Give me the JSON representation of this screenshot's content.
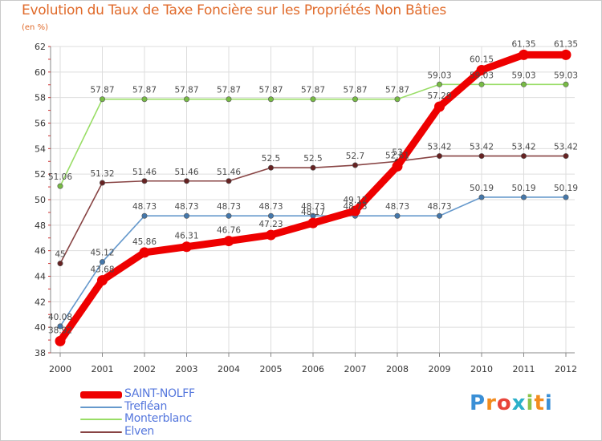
{
  "title": "Evolution du Taux de Taxe Foncière sur les Propriétés Non Bâties",
  "unit_label": "(en %)",
  "logo": {
    "text": "Proxiti",
    "letters": [
      "P",
      "r",
      "o",
      "x",
      "i",
      "t",
      "i"
    ],
    "colors": [
      "#3a8fd6",
      "#f28c1e",
      "#e8443a",
      "#2bb0c9",
      "#8bc34a",
      "#f28c1e",
      "#3a8fd6"
    ]
  },
  "chart_data": {
    "type": "line",
    "title": "Evolution du Taux de Taxe Foncière sur les Propriétés Non Bâties",
    "ylabel": "(en %)",
    "xlabel": "",
    "ylim": [
      38,
      62
    ],
    "yticks": [
      38,
      40,
      42,
      44,
      46,
      48,
      50,
      52,
      54,
      56,
      58,
      60,
      62
    ],
    "x": [
      "2000",
      "2001",
      "2002",
      "2003",
      "2004",
      "2005",
      "2006",
      "2007",
      "2008",
      "2009",
      "2010",
      "2011",
      "2012"
    ],
    "grid": true,
    "legend": "bottom-left",
    "series": [
      {
        "name": "Monterblanc",
        "color": "#99dd66",
        "marker": "#77bb44",
        "values": [
          51.06,
          57.87,
          57.87,
          57.87,
          57.87,
          57.87,
          57.87,
          57.87,
          57.87,
          59.03,
          59.03,
          59.03,
          59.03
        ],
        "labels": [
          "51.06",
          "57.87",
          "57.87",
          "57.87",
          "57.87",
          "57.87",
          "57.87",
          "57.87",
          "57.87",
          "59.03",
          "59.03",
          "59.03",
          "59.03"
        ]
      },
      {
        "name": "Elven",
        "color": "#884444",
        "marker": "#662222",
        "values": [
          45,
          51.32,
          51.46,
          51.46,
          51.46,
          52.5,
          52.5,
          52.7,
          53,
          53.42,
          53.42,
          53.42,
          53.42
        ],
        "labels": [
          "45",
          "51.32",
          "51.46",
          "51.46",
          "51.46",
          "52.5",
          "52.5",
          "52.7",
          "53",
          "53.42",
          "53.42",
          "53.42",
          "53.42"
        ]
      },
      {
        "name": "Trefléan",
        "color": "#6699cc",
        "marker": "#4477aa",
        "values": [
          40.08,
          45.12,
          48.73,
          48.73,
          48.73,
          48.73,
          48.73,
          48.73,
          48.73,
          48.73,
          50.19,
          50.19,
          50.19
        ],
        "labels": [
          "40.08",
          "45.12",
          "48.73",
          "48.73",
          "48.73",
          "48.73",
          "48.73",
          "48.73",
          "48.73",
          "48.73",
          "50.19",
          "50.19",
          "50.19"
        ]
      },
      {
        "name": "SAINT-NOLFF",
        "color": "#ee0000",
        "marker": "#ee0000",
        "values": [
          38.92,
          43.68,
          45.86,
          46.31,
          46.76,
          47.23,
          48.17,
          49.12,
          52.61,
          57.29,
          60.15,
          61.35,
          61.35
        ],
        "labels": [
          "38.92",
          "43.68",
          "45.86",
          "46.31",
          "46.76",
          "47.23",
          "48.17",
          "49.12",
          "52.61",
          "57.29",
          "60.15",
          "61.35",
          "61.35"
        ]
      }
    ]
  },
  "legend_items": [
    {
      "label": "SAINT-NOLFF",
      "color": "#ee0000"
    },
    {
      "label": "Trefléan",
      "color": "#6699cc"
    },
    {
      "label": "Monterblanc",
      "color": "#99dd66"
    },
    {
      "label": "Elven",
      "color": "#884444"
    }
  ]
}
